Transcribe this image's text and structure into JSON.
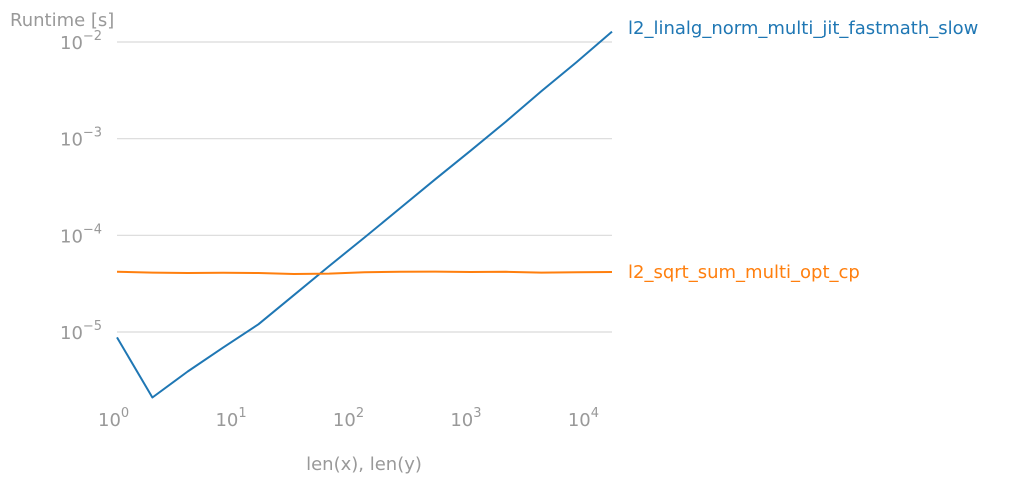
{
  "chart_data": {
    "type": "line",
    "ylabel": "Runtime [s]",
    "xlabel": "len(x), len(y)",
    "xscale": "log",
    "yscale": "log",
    "xlim": [
      1,
      16384
    ],
    "ylim": [
      2e-06,
      0.014
    ],
    "grid": "y-major",
    "legend": "inline-right",
    "x_ticks": [
      {
        "base": "10",
        "exp": "0"
      },
      {
        "base": "10",
        "exp": "1"
      },
      {
        "base": "10",
        "exp": "2"
      },
      {
        "base": "10",
        "exp": "3"
      },
      {
        "base": "10",
        "exp": "4"
      }
    ],
    "y_ticks": [
      {
        "base": "10",
        "exp": "−5"
      },
      {
        "base": "10",
        "exp": "−4"
      },
      {
        "base": "10",
        "exp": "−3"
      },
      {
        "base": "10",
        "exp": "−2"
      }
    ],
    "x": [
      1,
      2,
      4,
      8,
      16,
      32,
      64,
      128,
      256,
      512,
      1024,
      2048,
      4096,
      8192,
      16384
    ],
    "series": [
      {
        "name": "l2_linalg_norm_multi_jit_fastmath_slow",
        "color": "#1f77b4",
        "values": [
          8.8e-06,
          2.1e-06,
          3.9e-06,
          6.9e-06,
          1.2e-05,
          2.4e-05,
          4.8e-05,
          9.5e-05,
          0.00019,
          0.00038,
          0.00075,
          0.0015,
          0.0031,
          0.0062,
          0.0128
        ]
      },
      {
        "name": "l2_sqrt_sum_multi_opt_cp",
        "color": "#ff7f0e",
        "values": [
          4.2e-05,
          4.12e-05,
          4.08e-05,
          4.1e-05,
          4.08e-05,
          3.98e-05,
          4.02e-05,
          4.16e-05,
          4.2e-05,
          4.22e-05,
          4.18e-05,
          4.2e-05,
          4.12e-05,
          4.16e-05,
          4.18e-05
        ]
      }
    ]
  }
}
